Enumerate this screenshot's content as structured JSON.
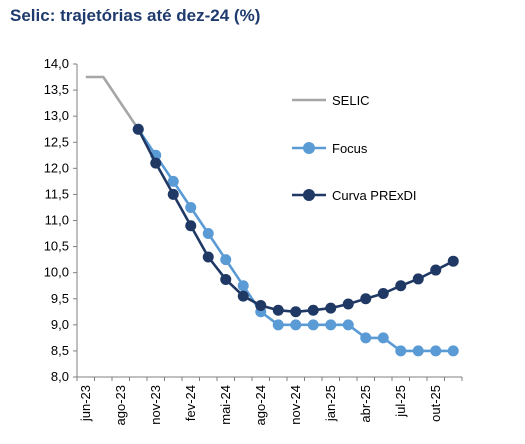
{
  "chart_data": {
    "type": "line",
    "title": "Selic: trajetórias até dez-24 (%)",
    "xlabel": "",
    "ylabel": "",
    "ylim": [
      8.0,
      14.0
    ],
    "y_ticks": [
      "8,0",
      "8,5",
      "9,0",
      "9,5",
      "10,0",
      "10,5",
      "11,0",
      "11,5",
      "12,0",
      "12,5",
      "13,0",
      "13,5",
      "14,0"
    ],
    "x_labels": [
      "jun-23",
      "ago-23",
      "nov-23",
      "fev-24",
      "mai-24",
      "ago-24",
      "nov-24",
      "jan-25",
      "abr-25",
      "jul-25",
      "out-25"
    ],
    "grid": false,
    "legend_position": "right",
    "series": [
      {
        "name": "SELIC",
        "color": "#a6a6a6",
        "marker": "none",
        "values": [
          13.75,
          13.75,
          13.25,
          12.75
        ]
      },
      {
        "name": "Focus",
        "color": "#5b9bd5",
        "marker": "circle",
        "values": [
          null,
          null,
          null,
          12.75,
          12.25,
          11.75,
          11.25,
          10.75,
          10.25,
          9.75,
          9.25,
          9.0,
          9.0,
          9.0,
          9.0,
          9.0,
          8.75,
          8.75,
          8.5,
          8.5,
          8.5,
          8.5
        ]
      },
      {
        "name": "Curva PRExDI",
        "color": "#1f3864",
        "marker": "circle",
        "values": [
          null,
          null,
          null,
          12.75,
          12.1,
          11.5,
          10.9,
          10.3,
          9.87,
          9.55,
          9.37,
          9.28,
          9.25,
          9.28,
          9.32,
          9.4,
          9.5,
          9.6,
          9.75,
          9.88,
          10.05,
          10.22
        ]
      }
    ]
  }
}
